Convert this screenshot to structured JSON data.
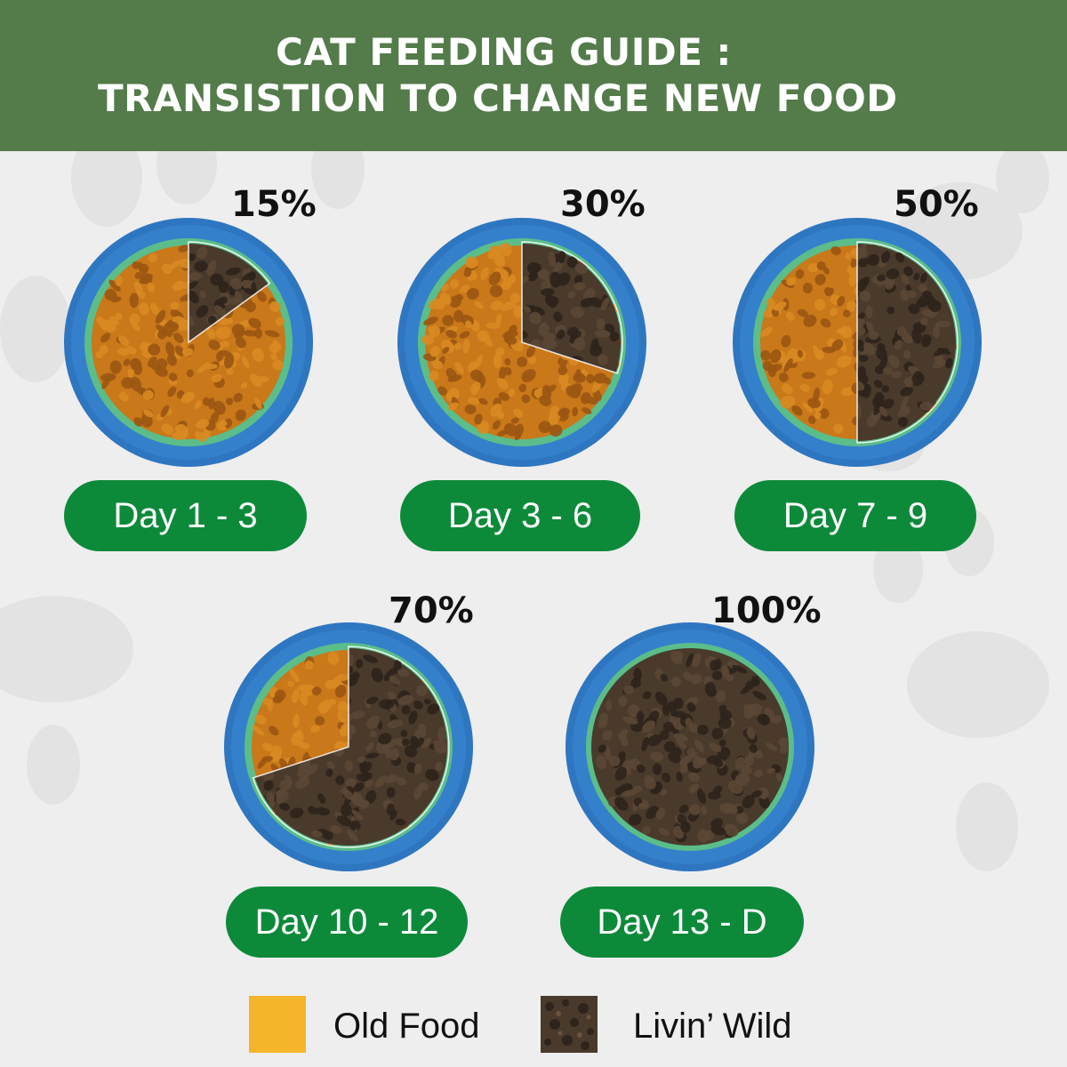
{
  "header": {
    "title_line1": "CAT FEEDING GUIDE :",
    "title_line2": "TRANSISTION TO CHANGE NEW FOOD",
    "background": "#547b4a"
  },
  "stages": [
    {
      "percent_label": "15%",
      "new_food_fraction": 0.15,
      "day_label": "Day 1 - 3"
    },
    {
      "percent_label": "30%",
      "new_food_fraction": 0.3,
      "day_label": "Day 3 - 6"
    },
    {
      "percent_label": "50%",
      "new_food_fraction": 0.5,
      "day_label": "Day 7 - 9"
    },
    {
      "percent_label": "70%",
      "new_food_fraction": 0.7,
      "day_label": "Day 10 - 12"
    },
    {
      "percent_label": "100%",
      "new_food_fraction": 1.0,
      "day_label": "Day 13 - D"
    }
  ],
  "legend": {
    "old_food_label": "Old Food",
    "new_food_label": "Livin’ Wild"
  },
  "colors": {
    "old_food": "#c9781a",
    "new_food": "#4a3a2c",
    "bowl_rim": "#2f76c0",
    "bowl_inner": "#5bbd8a",
    "pill": "#0c8a3a",
    "legend_old": "#f5b52a"
  }
}
